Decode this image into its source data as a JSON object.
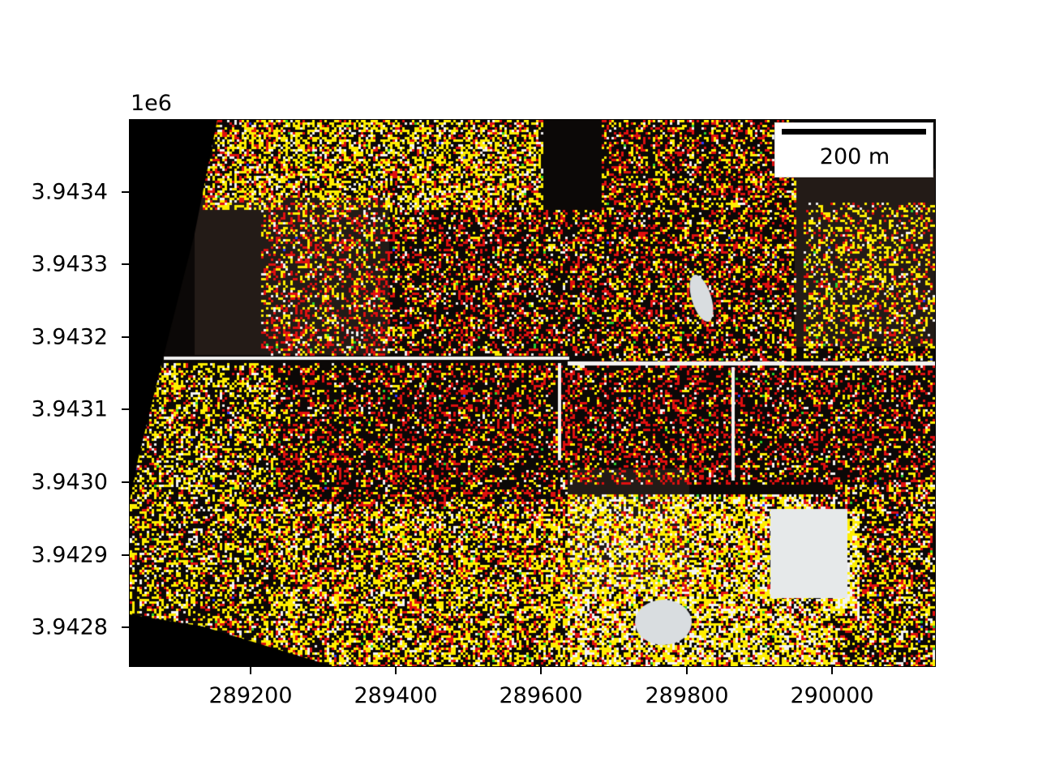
{
  "map": {
    "offset_label": "1e6",
    "x_ticks": [
      "289200",
      "289400",
      "289600",
      "289800",
      "290000"
    ],
    "y_ticks": [
      "3.9434",
      "3.9433",
      "3.9432",
      "3.9431",
      "3.9430",
      "3.9429",
      "3.9428"
    ],
    "scalebar": {
      "label": "200 m"
    },
    "colors": {
      "background": "#0b0807",
      "dark_ground": "#231b17",
      "red_pixels": "#e01010",
      "yellow_pixels": "#ffee00",
      "white_pixels": "#f2f2f2",
      "green_pixels": "#2bd12b",
      "blue_pixels": "#2a3cff",
      "nodata": "#000000"
    }
  }
}
